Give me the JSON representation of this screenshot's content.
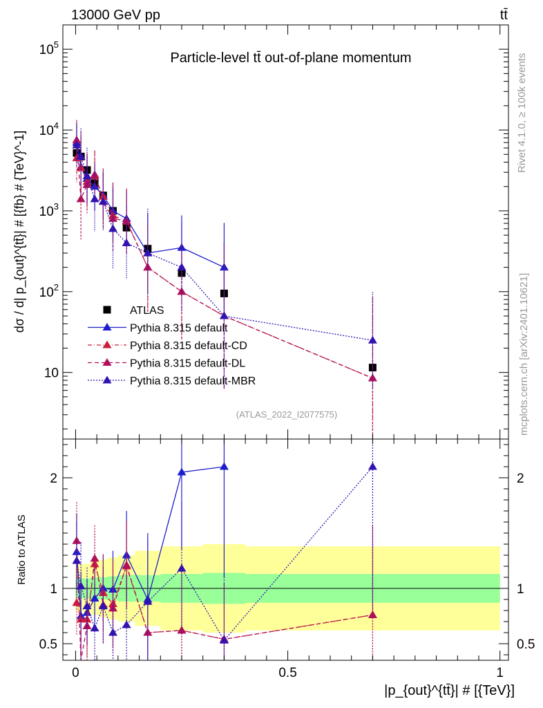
{
  "header": {
    "energy_label": "13000 GeV pp",
    "process_label": "tt̄"
  },
  "side_labels": {
    "rivet": "Rivet 4.1.0, ≥ 100k events",
    "mcplots": "mcplots.cern.ch [arXiv:2401.10621]"
  },
  "watermark": "(ATLAS_2022_I2077575)",
  "chart_data": [
    {
      "type": "line",
      "title": "Particle-level tt̄ out-of-plane momentum",
      "ylabel": "dσ / d| p_{out}^{tt̄}| # [{fb} # {TeV}^-1]",
      "xlabel": "",
      "yscale": "log",
      "xlim": [
        -0.03,
        1.02
      ],
      "ylim": [
        1.5,
        200000
      ],
      "yticks": [
        10,
        100,
        1000,
        10000,
        100000
      ],
      "ytick_labels": [
        "10",
        "10^2",
        "10^3",
        "10^4",
        "10^5"
      ],
      "grid": false,
      "legend_position": "center-left",
      "series": [
        {
          "name": "ATLAS",
          "color": "#000000",
          "style": "data",
          "x": [
            0.0025,
            0.0125,
            0.027,
            0.045,
            0.065,
            0.088,
            0.12,
            0.17,
            0.25,
            0.35,
            0.7
          ],
          "y": [
            5200,
            4700,
            3200,
            2200,
            1550,
            1000,
            620,
            340,
            170,
            95,
            11.5
          ]
        },
        {
          "name": "Pythia 8.315 default",
          "color": "#1e1ecc",
          "style": "solid",
          "x": [
            0.0025,
            0.0125,
            0.027,
            0.045,
            0.065,
            0.088,
            0.12,
            0.17,
            0.25,
            0.35
          ],
          "y": [
            7000,
            3500,
            2500,
            2000,
            1550,
            1000,
            800,
            300,
            350,
            200
          ],
          "err": [
            0.25,
            0.4,
            0.3,
            0.3,
            0.3,
            0.35,
            0.35,
            0.5,
            0.4,
            0.55
          ]
        },
        {
          "name": "Pythia 8.315 default-CD",
          "color": "#cc1e3c",
          "style": "dashdot",
          "x": [
            0.0025,
            0.0125,
            0.027,
            0.045,
            0.065,
            0.088,
            0.12,
            0.17,
            0.25,
            0.35,
            0.7
          ],
          "y": [
            4500,
            3400,
            2300,
            2700,
            1500,
            880,
            740,
            200,
            100,
            50,
            8.5
          ],
          "err": [
            0.3,
            0.45,
            0.35,
            0.3,
            0.35,
            0.4,
            0.4,
            0.55,
            0.6,
            0.9,
            1.0
          ]
        },
        {
          "name": "Pythia 8.315 default-DL",
          "color": "#b0105a",
          "style": "dashed",
          "x": [
            0.0025,
            0.0125,
            0.027,
            0.045,
            0.065,
            0.088,
            0.12,
            0.17,
            0.25,
            0.35,
            0.7
          ],
          "y": [
            7500,
            1400,
            2100,
            2800,
            1300,
            800,
            750,
            200,
            100,
            50,
            8.5
          ],
          "err": [
            0.25,
            0.5,
            0.35,
            0.3,
            0.35,
            0.4,
            0.4,
            0.55,
            0.6,
            0.9,
            1.0
          ]
        },
        {
          "name": "Pythia 8.315 default-MBR",
          "color": "#3212b0",
          "style": "dotted",
          "x": [
            0.0025,
            0.0125,
            0.027,
            0.045,
            0.065,
            0.088,
            0.12,
            0.17,
            0.25,
            0.35,
            0.7
          ],
          "y": [
            6500,
            4700,
            2700,
            1400,
            1300,
            600,
            400,
            300,
            200,
            50,
            25
          ],
          "err": [
            0.25,
            0.35,
            0.35,
            0.4,
            0.35,
            0.5,
            0.45,
            0.55,
            0.55,
            0.9,
            0.6
          ]
        }
      ]
    },
    {
      "type": "line",
      "title": "",
      "ylabel": "Ratio to ATLAS",
      "xlabel": "|p_{out}^{tt̄}| # [{TeV}]",
      "xlim": [
        -0.03,
        1.02
      ],
      "ylim": [
        0.35,
        2.35
      ],
      "xticks": [
        0,
        0.5,
        1
      ],
      "xtick_labels": [
        "0",
        "0.5",
        "1"
      ],
      "yticks": [
        0.5,
        1,
        2
      ],
      "ytick_labels": [
        "0.5",
        "1",
        "2"
      ],
      "reference_line": 1,
      "uncertainty_bands": {
        "bin_edges": [
          0,
          0.005,
          0.02,
          0.035,
          0.055,
          0.075,
          0.1,
          0.14,
          0.2,
          0.3,
          0.4,
          1.0
        ],
        "stat": [
          0.08,
          0.09,
          0.09,
          0.1,
          0.1,
          0.11,
          0.12,
          0.12,
          0.13,
          0.14,
          0.13
        ],
        "total": [
          0.2,
          0.22,
          0.22,
          0.24,
          0.26,
          0.28,
          0.3,
          0.34,
          0.38,
          0.4,
          0.38
        ],
        "stat_color": "#99ff99",
        "total_color": "#ffff99"
      },
      "series": [
        {
          "name": "Pythia 8.315 default",
          "x": [
            0.0025,
            0.0125,
            0.027,
            0.045,
            0.065,
            0.088,
            0.12,
            0.17,
            0.25,
            0.35
          ],
          "y": [
            1.33,
            0.75,
            0.78,
            0.91,
            1.0,
            0.99,
            1.3,
            0.9,
            2.05,
            2.1
          ],
          "err": [
            0.35,
            0.4,
            0.3,
            0.3,
            0.3,
            0.35,
            0.4,
            0.6,
            0.7,
            1.0
          ]
        },
        {
          "name": "Pythia 8.315 default-CD",
          "x": [
            0.0025,
            0.0125,
            0.027,
            0.045,
            0.065,
            0.088,
            0.12,
            0.17,
            0.25,
            0.35,
            0.7
          ],
          "y": [
            0.87,
            0.72,
            0.72,
            1.22,
            0.96,
            0.86,
            1.2,
            0.6,
            0.62,
            0.54,
            0.76
          ],
          "err": [
            0.3,
            0.45,
            0.35,
            0.3,
            0.35,
            0.4,
            0.4,
            0.5,
            0.6,
            0.5,
            0.8
          ]
        },
        {
          "name": "Pythia 8.315 default-DL",
          "x": [
            0.0025,
            0.0125,
            0.027,
            0.045,
            0.065,
            0.088,
            0.12,
            0.17,
            0.25,
            0.35,
            0.7
          ],
          "y": [
            1.43,
            0.3,
            0.66,
            1.27,
            0.85,
            0.82,
            1.21,
            0.6,
            0.62,
            0.54,
            0.76
          ],
          "err": [
            0.35,
            0.5,
            0.35,
            0.3,
            0.35,
            0.4,
            0.4,
            0.5,
            0.6,
            0.5,
            0.8
          ]
        },
        {
          "name": "Pythia 8.315 default-MBR",
          "x": [
            0.0025,
            0.0125,
            0.027,
            0.045,
            0.065,
            0.088,
            0.12,
            0.17,
            0.25,
            0.35,
            0.7
          ],
          "y": [
            1.25,
            1.02,
            0.84,
            0.64,
            0.84,
            0.6,
            0.67,
            0.88,
            1.18,
            0.53,
            2.1
          ],
          "err": [
            0.35,
            0.4,
            0.35,
            0.4,
            0.35,
            0.5,
            0.45,
            0.55,
            0.6,
            0.6,
            1.3
          ]
        }
      ]
    }
  ]
}
